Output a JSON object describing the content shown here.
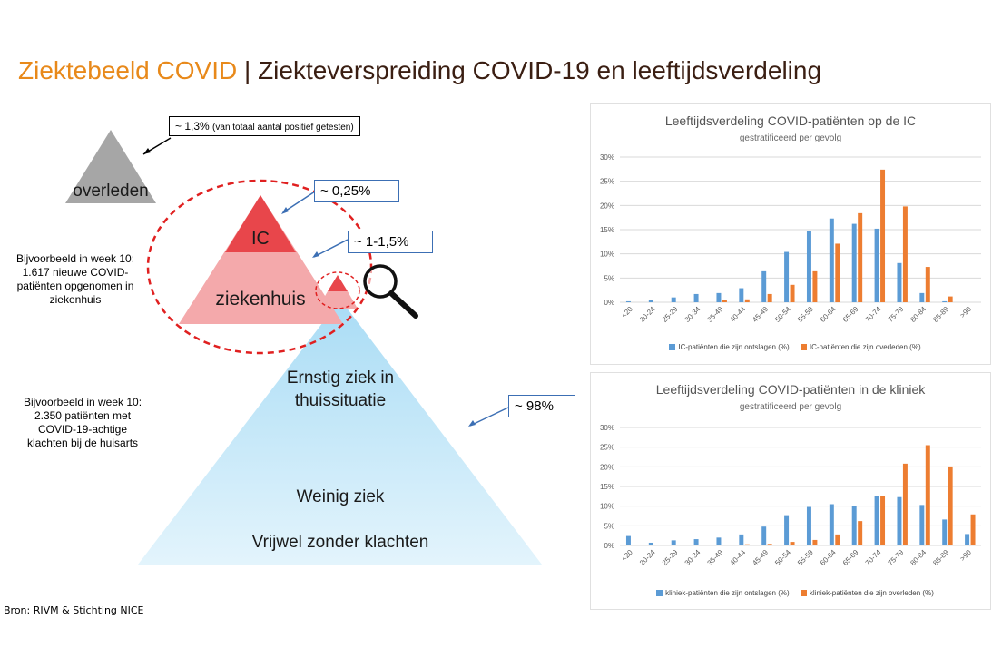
{
  "title": {
    "part1": "Ziektebeeld COVID",
    "separator": " | ",
    "part2": "Ziekteverspreiding COVID-19 en leeftijdsverdeling"
  },
  "pyramid": {
    "deceased_label": "overleden",
    "ic_label": "IC",
    "hospital_label": "ziekenhuis",
    "severe_home_label_1": "Ernstig ziek in",
    "severe_home_label_2": "thuissituatie",
    "mild_label": "Weinig ziek",
    "no_symptoms_label": "Vrijwel zonder klachten",
    "callout_deceased_main": "~ 1,3%",
    "callout_deceased_note": "(van totaal aantal positief getesten)",
    "callout_ic": "~ 0,25%",
    "callout_hospital": "~ 1-1,5%",
    "callout_total": "~ 98%",
    "note_hospital": [
      "Bijvoorbeeld in week 10:",
      "1.617 nieuwe COVID-",
      "patiënten opgenomen in",
      "ziekenhuis"
    ],
    "note_gp": [
      "Bijvoorbeeld in week 10:",
      "2.350 patiënten met",
      "COVID-19-achtige",
      "klachten bij de huisarts"
    ],
    "colors": {
      "deceased": "#a6a6a6",
      "ic": "#e8464b",
      "hospital": "#f4a9ab",
      "base_top": "#a9dcf5",
      "base_bottom": "#e3f4fc",
      "dash": "#e02020"
    }
  },
  "source": "Bron: RIVM & Stichting NICE",
  "chart_data": [
    {
      "type": "bar",
      "title": "Leeftijdsverdeling COVID-patiënten op de IC",
      "subtitle": "gestratificeerd per gevolg",
      "categories": [
        "<20",
        "20-24",
        "25-29",
        "30-34",
        "35-49",
        "40-44",
        "45-49",
        "50-54",
        "55-59",
        "60-64",
        "65-69",
        "70-74",
        "75-79",
        "80-84",
        "85-89",
        ">90"
      ],
      "series": [
        {
          "name": "IC-patiënten die zijn ontslagen (%)",
          "color": "#5b9bd5",
          "values": [
            0.2,
            0.5,
            1.0,
            1.7,
            1.9,
            2.9,
            6.4,
            10.4,
            14.8,
            17.3,
            16.2,
            15.2,
            8.1,
            1.9,
            0.2,
            0.0
          ]
        },
        {
          "name": "IC-patiënten die zijn overleden (%)",
          "color": "#ed7d31",
          "values": [
            0.0,
            0.0,
            0.0,
            0.0,
            0.4,
            0.6,
            1.7,
            3.6,
            6.4,
            12.1,
            18.4,
            27.4,
            19.8,
            7.3,
            1.2,
            0.0
          ]
        }
      ],
      "yticks": [
        "0%",
        "5%",
        "10%",
        "15%",
        "20%",
        "25%",
        "30%"
      ],
      "ylim": [
        0,
        30
      ],
      "grid": true,
      "legend": "bottom"
    },
    {
      "type": "bar",
      "title": "Leeftijdsverdeling COVID-patiënten in de kliniek",
      "subtitle": "gestratificeerd per gevolg",
      "categories": [
        "<20",
        "20-24",
        "25-29",
        "30-34",
        "35-49",
        "40-44",
        "45-49",
        "50-54",
        "55-59",
        "60-64",
        "65-69",
        "70-74",
        "75-79",
        "80-84",
        "85-89",
        ">90"
      ],
      "series": [
        {
          "name": "kliniek-patiënten die zijn ontslagen (%)",
          "color": "#5b9bd5",
          "values": [
            2.4,
            0.7,
            1.3,
            1.6,
            2.0,
            2.8,
            4.8,
            7.7,
            9.8,
            10.5,
            10.1,
            12.6,
            12.3,
            10.3,
            6.6,
            2.9
          ]
        },
        {
          "name": "kliniek-patiënten die zijn overleden (%)",
          "color": "#ed7d31",
          "values": [
            0.1,
            0.1,
            0.1,
            0.2,
            0.2,
            0.3,
            0.4,
            0.9,
            1.4,
            2.8,
            6.2,
            12.5,
            20.8,
            25.5,
            20.1,
            7.9
          ]
        }
      ],
      "yticks": [
        "0%",
        "5%",
        "10%",
        "15%",
        "20%",
        "25%",
        "30%"
      ],
      "ylim": [
        0,
        30
      ],
      "grid": true,
      "legend": "bottom"
    }
  ]
}
